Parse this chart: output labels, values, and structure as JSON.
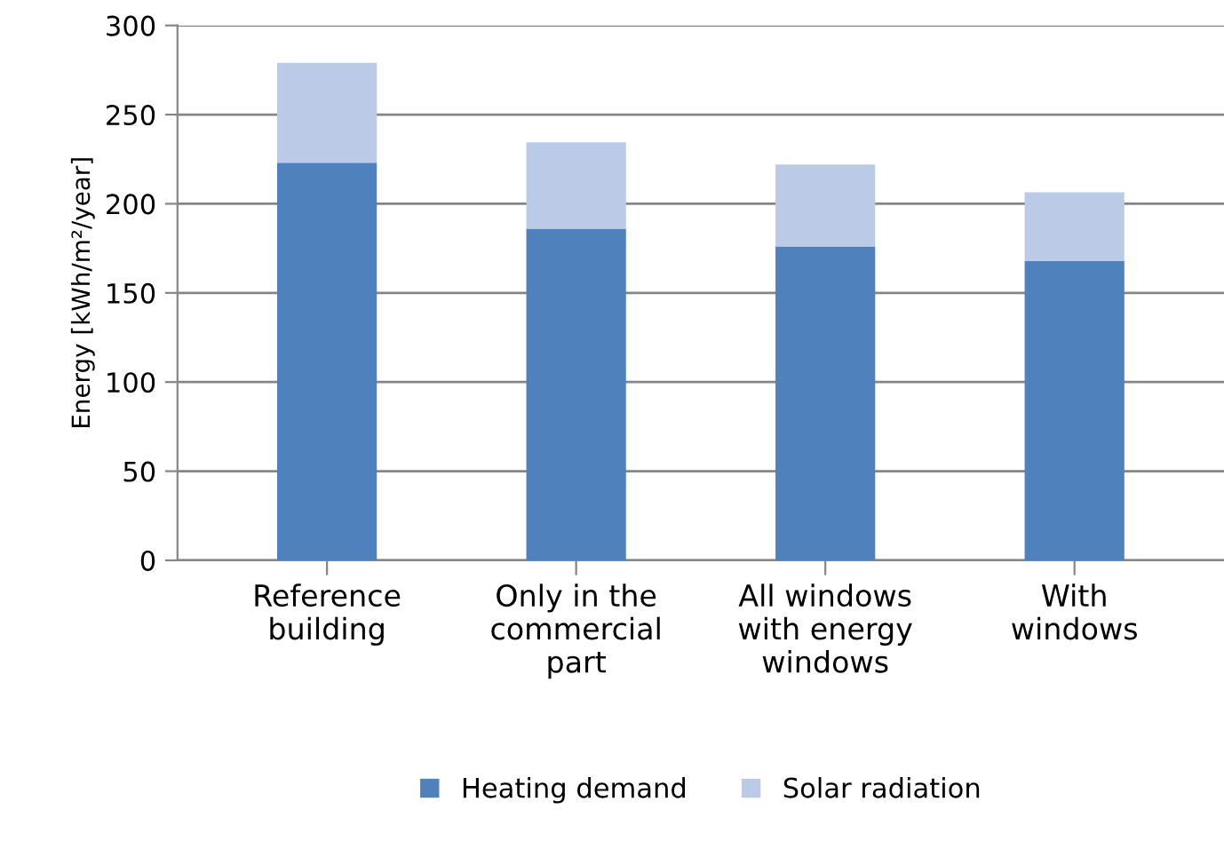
{
  "chart_data": {
    "type": "bar",
    "stacked": true,
    "ylabel": "Energy [kWh/m²/year]",
    "categories": [
      "Reference\nbuilding",
      "Only in the\ncommercial\npart",
      "All windows\nwith energy\nwindows",
      "With\nwindows"
    ],
    "series": [
      {
        "name": "Heating demand",
        "color": "#4f81bd",
        "values": [
          223,
          186,
          176,
          168
        ]
      },
      {
        "name": "Solar radiation",
        "color": "#bbcbe7",
        "values": [
          56,
          48.5,
          46,
          38.5
        ]
      }
    ],
    "ylim": [
      0,
      300
    ],
    "yticks": [
      0,
      50,
      100,
      150,
      200,
      250,
      300
    ],
    "grid": "y",
    "legend": "bottom"
  }
}
